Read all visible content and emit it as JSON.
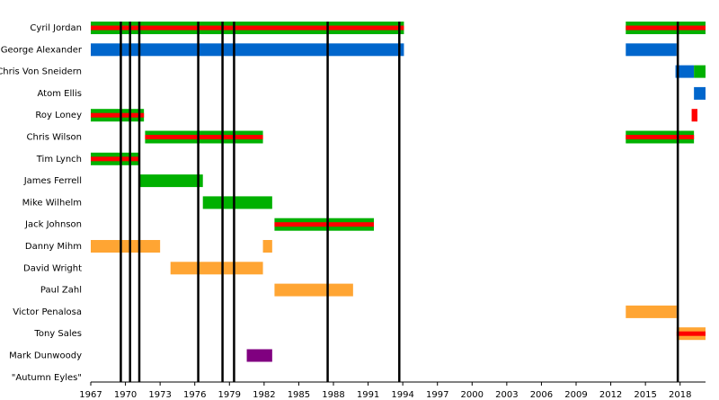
{
  "chart_data": {
    "type": "timeline",
    "xlim": [
      1967,
      2020.2
    ],
    "xticks": [
      1967,
      1970,
      1973,
      1976,
      1979,
      1982,
      1985,
      1988,
      1991,
      1994,
      1997,
      2000,
      2003,
      2006,
      2009,
      2012,
      2015,
      2018
    ],
    "events": [
      1969.6,
      1970.4,
      1971.2,
      1976.3,
      1978.4,
      1979.4,
      1987.5,
      1993.7,
      2017.8
    ],
    "event_color": "#000000",
    "rows": [
      {
        "name": "Cyril Jordan",
        "bars": [
          {
            "start": 1967,
            "end": 1994.1,
            "color": "#00b000",
            "stripe": "#ff0000"
          },
          {
            "start": 2013.3,
            "end": 2020.2,
            "color": "#00b000",
            "stripe": "#ff0000"
          }
        ]
      },
      {
        "name": "George Alexander",
        "bars": [
          {
            "start": 1967,
            "end": 1994.1,
            "color": "#0066cc"
          },
          {
            "start": 2013.3,
            "end": 2017.7,
            "color": "#0066cc"
          }
        ]
      },
      {
        "name": "Chris Von Sneidern",
        "bars": [
          {
            "start": 2017.6,
            "end": 2019.2,
            "color": "#0066cc"
          },
          {
            "start": 2019.2,
            "end": 2020.2,
            "color": "#00b000"
          }
        ]
      },
      {
        "name": "Atom Ellis",
        "bars": [
          {
            "start": 2019.2,
            "end": 2020.2,
            "color": "#0066cc"
          }
        ]
      },
      {
        "name": "Roy Loney",
        "bars": [
          {
            "start": 1967,
            "end": 1971.6,
            "color": "#00b000",
            "stripe": "#ff0000"
          },
          {
            "start": 2019.0,
            "end": 2019.5,
            "color": "#ff0000"
          }
        ]
      },
      {
        "name": "Chris Wilson",
        "bars": [
          {
            "start": 1971.7,
            "end": 1981.9,
            "color": "#00b000",
            "stripe": "#ff0000"
          },
          {
            "start": 2013.3,
            "end": 2019.2,
            "color": "#00b000",
            "stripe": "#ff0000"
          }
        ]
      },
      {
        "name": "Tim Lynch",
        "bars": [
          {
            "start": 1967,
            "end": 1971.2,
            "color": "#00b000",
            "stripe": "#ff0000"
          }
        ]
      },
      {
        "name": "James Ferrell",
        "bars": [
          {
            "start": 1971.2,
            "end": 1976.7,
            "color": "#00b000"
          }
        ]
      },
      {
        "name": "Mike Wilhelm",
        "bars": [
          {
            "start": 1976.7,
            "end": 1982.7,
            "color": "#00b000"
          }
        ]
      },
      {
        "name": "Jack Johnson",
        "bars": [
          {
            "start": 1982.9,
            "end": 1991.5,
            "color": "#00b000",
            "stripe": "#ff0000"
          }
        ]
      },
      {
        "name": "Danny Mihm",
        "bars": [
          {
            "start": 1967,
            "end": 1973,
            "color": "#ffa533"
          },
          {
            "start": 1981.9,
            "end": 1982.7,
            "color": "#ffa533"
          }
        ]
      },
      {
        "name": "David Wright",
        "bars": [
          {
            "start": 1973.9,
            "end": 1981.9,
            "color": "#ffa533"
          }
        ]
      },
      {
        "name": "Paul Zahl",
        "bars": [
          {
            "start": 1982.9,
            "end": 1989.7,
            "color": "#ffa533"
          }
        ]
      },
      {
        "name": "Victor Penalosa",
        "bars": [
          {
            "start": 2013.3,
            "end": 2017.7,
            "color": "#ffa533"
          }
        ]
      },
      {
        "name": "Tony Sales",
        "bars": [
          {
            "start": 2017.7,
            "end": 2020.2,
            "color": "#ffa533",
            "stripe": "#ff0000"
          }
        ]
      },
      {
        "name": "Mark Dunwoody",
        "bars": [
          {
            "start": 1980.5,
            "end": 1982.7,
            "color": "#800080"
          }
        ]
      },
      {
        "name": "\"Autumn Eyles\"",
        "bars": []
      }
    ]
  }
}
